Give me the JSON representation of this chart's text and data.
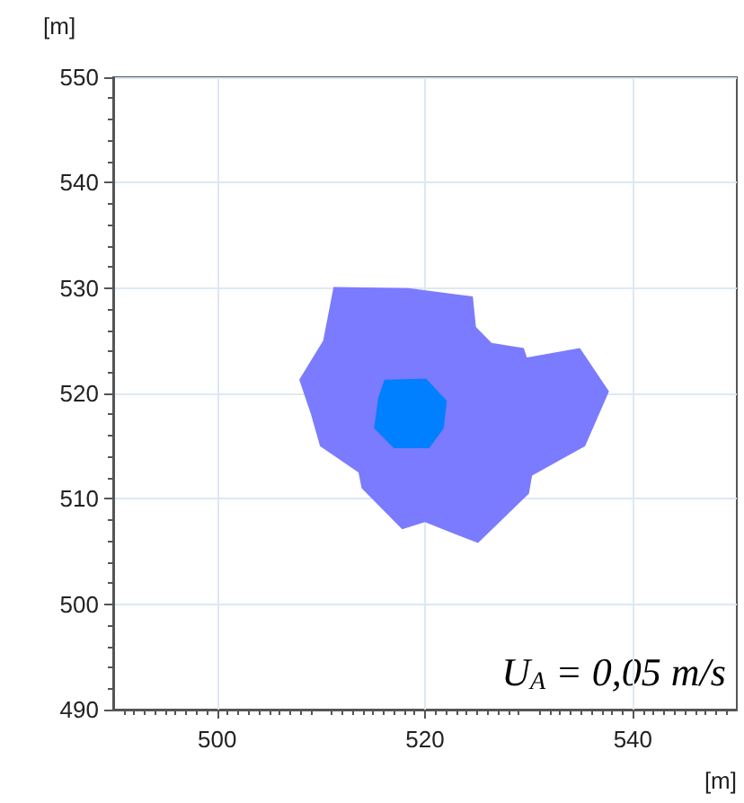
{
  "chart_data": {
    "type": "area",
    "xlabel": "[m]",
    "ylabel": "[m]",
    "annotations": [
      "U$_{A}$ = 0,05 m/s"
    ],
    "xlim": [
      490,
      550
    ],
    "ylim": [
      490,
      550
    ],
    "xticks": [
      500,
      520,
      540
    ],
    "yticks": [
      490,
      500,
      510,
      520,
      530,
      540,
      550
    ],
    "grid": true,
    "series": [
      {
        "color": "#7b7bff",
        "x": [
          511.2,
          518.4,
          524.6,
          524.9,
          526.4,
          529.5,
          529.8,
          534.9,
          537.7,
          535.4,
          530.3,
          530,
          525.1,
          521.5,
          520,
          517.8,
          513.9,
          513.6,
          509.9,
          509,
          507.9,
          510.2
        ],
        "values": [
          530.1,
          530,
          529.2,
          526.3,
          524.8,
          524.3,
          523.4,
          524.3,
          520.2,
          515,
          512.2,
          510.5,
          505.8,
          507.2,
          507.8,
          507.1,
          511,
          512.5,
          515,
          518.1,
          521.3,
          525
        ]
      },
      {
        "color": "#0080ff",
        "x": [
          516.1,
          520.1,
          522.1,
          521.8,
          520.4,
          517,
          515.1,
          515.5
        ],
        "values": [
          521.3,
          521.4,
          519.3,
          516.7,
          514.8,
          514.8,
          516.7,
          519.6
        ]
      }
    ]
  }
}
